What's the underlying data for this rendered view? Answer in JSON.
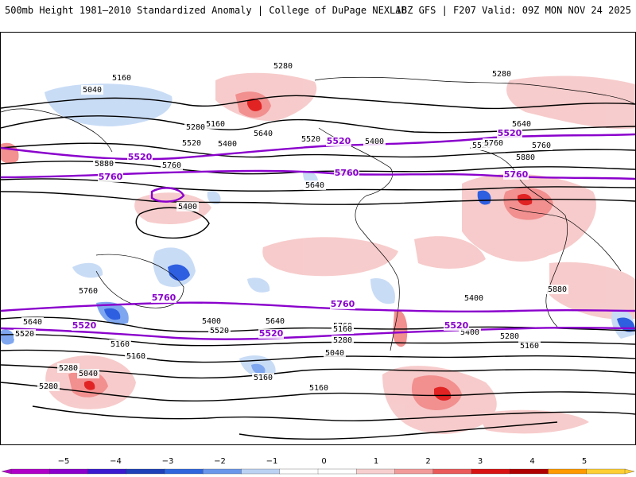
{
  "header": {
    "left_title": "500mb Height 1981–2010 Standardized Anomaly | College of DuPage NEXLAB",
    "right_title": "18Z GFS | F207 Valid: 09Z MON NOV 24 2025"
  },
  "map": {
    "variable": "500mb geopotential height",
    "contour_labels_black": [
      "5160",
      "5280",
      "5040",
      "5280",
      "5160",
      "5280",
      "5520",
      "5400",
      "5640",
      "5520",
      "5400",
      "5640",
      "5760",
      "5880",
      "5760",
      "5640",
      "5520",
      "5400",
      "5760",
      "5880",
      "5280",
      "5160",
      "5040",
      "5280",
      "5160",
      "5400",
      "5520",
      "5640",
      "5760",
      "5400",
      "5280",
      "5160",
      "5040",
      "5160",
      "5160",
      "5640",
      "5520",
      "5400",
      "5280",
      "5160",
      "5760",
      "5880"
    ],
    "contour_labels_purple": [
      "5520",
      "5760",
      "5520",
      "5760",
      "5520",
      "5760",
      "5520",
      "5760",
      "5520",
      "5760",
      "5520"
    ],
    "colors": {
      "contour": "#000000",
      "highlight_contour": "#8a00cc",
      "neg_strong": "#2e5fe0",
      "neg_mid": "#7fa7f0",
      "neg_light": "#c9dcf6",
      "pos_light": "#f7c9c9",
      "pos_mid": "#f28a8a",
      "pos_strong": "#e01818",
      "coastline": "#000000"
    }
  },
  "legend": {
    "ticks": [
      "−5",
      "−4",
      "−3",
      "−2",
      "−1",
      "0",
      "1",
      "2",
      "3",
      "4",
      "5"
    ],
    "colors": [
      "#b000c8",
      "#8a00cc",
      "#3a1bd0",
      "#1e40b8",
      "#2f66dd",
      "#6a97ea",
      "#bcd2f3",
      "#ffffff",
      "#ffffff",
      "#f8cfcf",
      "#f29a9a",
      "#ea5a5a",
      "#d81212",
      "#b00000",
      "#ff9a00",
      "#ffcf33"
    ]
  }
}
